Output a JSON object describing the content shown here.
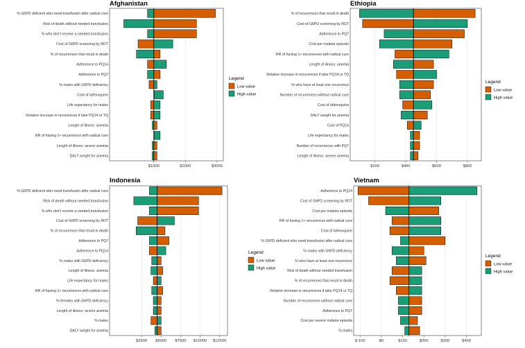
{
  "legend": {
    "title": "Legend",
    "low": "Low value",
    "high": "High value"
  },
  "colors": {
    "low": "#D55E00",
    "high": "#1B9E77"
  },
  "chart_data": [
    {
      "type": "bar",
      "title": "Afghanistan",
      "baseline": 1000,
      "xlim": [
        -400,
        3200
      ],
      "ticks": [
        1000,
        2000,
        3000
      ],
      "tick_labels": [
        "$1000",
        "$2000",
        "$3000"
      ],
      "categories": [
        "% G6PD deficient who need transfusion after radical cure",
        "Risk of death without needed transfusion",
        "% who don't receive a needed transfusion",
        "Cost of G6PD screening by RDT",
        "% of recurrences that result in death",
        "Adherence to PQ14",
        "Adherence to PQ7",
        "% males with G6PD deficiency",
        "Cost of tafenoquine",
        "Life expectancy for males",
        "Relative increase in recurrences if take PQ14 or TQ",
        "Length of illness: anemia",
        "RR of having 1+ recurrences with radical cure",
        "Length of illness: severe anemia",
        "DALY weight for anemia"
      ],
      "series": [
        {
          "name": "Low value",
          "values": [
            2950,
            2350,
            2350,
            500,
            1200,
            800,
            1200,
            850,
            1000,
            900,
            900,
            1100,
            1000,
            1100,
            1100
          ]
        },
        {
          "name": "High value",
          "values": [
            800,
            50,
            800,
            1600,
            450,
            1400,
            800,
            1100,
            1300,
            1200,
            1200,
            950,
            1200,
            950,
            950
          ]
        }
      ]
    },
    {
      "type": "bar",
      "title": "Ethiopia",
      "baseline": 450,
      "xlim": [
        40,
        890
      ],
      "ticks": [
        200,
        400,
        600,
        800
      ],
      "tick_labels": [
        "$200",
        "$400",
        "$600",
        "$800"
      ],
      "categories": [
        "% of recurrences that result in death",
        "Cost of G6PD screening by RDT",
        "Adherence to PQ7",
        "Cost per malaria episode",
        "RR of having 1+ recurrences with radical cure",
        "Length of illness: anemia",
        "Relative increase in recurrences if take PQ14 or TQ",
        "% who have at least one recurrence",
        "Number of recurrences without radical cure",
        "Cost of tafenoquine",
        "DALY weight for anemia",
        "Cost of PQ14",
        "Life expectancy for males",
        "Number of recurrences with PQ7",
        "Length of illness: severe anemia"
      ],
      "series": [
        {
          "name": "Low value",
          "values": [
            850,
            120,
            780,
            700,
            330,
            580,
            340,
            580,
            560,
            380,
            540,
            410,
            490,
            490,
            480
          ]
        },
        {
          "name": "High value",
          "values": [
            100,
            800,
            260,
            230,
            680,
            320,
            600,
            360,
            360,
            570,
            370,
            500,
            430,
            430,
            430
          ]
        }
      ]
    },
    {
      "type": "bar",
      "title": "Indonesia",
      "baseline": 4500,
      "xlim": [
        -1600,
        13500
      ],
      "ticks": [
        2500,
        5000,
        7500,
        10000,
        12500
      ],
      "tick_labels": [
        "$2500",
        "$5000",
        "$7500",
        "$10000",
        "$12500"
      ],
      "categories": [
        "% G6PD deficient who need transfusion after radical cure",
        "Risk of death without needed transfusion",
        "% who don't receive a needed transfusion",
        "Cost of G6PD screening by RDT",
        "% of recurrences that result in death",
        "Adherence to PQ7",
        "Adherence to PQ14",
        "% males with G6PD deficiency",
        "Length of illness: anemia",
        "Life expectancy for males",
        "RR of having 1+ recurrences with radical cure",
        "% females with G6PD deficiency",
        "Length of illness: severe anemia",
        "% males",
        "DALY weight for anemia"
      ],
      "series": [
        {
          "name": "Low value",
          "values": [
            12800,
            9800,
            9800,
            2000,
            5500,
            6000,
            3500,
            5000,
            5200,
            4000,
            5200,
            5000,
            5000,
            3700,
            5000
          ]
        },
        {
          "name": "High value",
          "values": [
            3500,
            1500,
            3500,
            6700,
            1800,
            3500,
            5600,
            3800,
            3700,
            5000,
            3800,
            4000,
            4000,
            5000,
            4200
          ]
        }
      ]
    },
    {
      "type": "bar",
      "title": "Vietnam",
      "baseline": 130,
      "xlim": [
        -130,
        470
      ],
      "ticks": [
        -100,
        0,
        100,
        200,
        300,
        400
      ],
      "tick_labels": [
        "$-100",
        "$0",
        "$100",
        "$200",
        "$300",
        "$400"
      ],
      "categories": [
        "Adherence to PQ14",
        "Cost of G6PD screening by RDT",
        "Cost per malaria episode",
        "RR of having 1+ recurrences with radical cure",
        "Cost of tafenoquine",
        "% G6PD deficient who need transfusion after radical cure",
        "% males with G6PD deficiency",
        "% who have at least one recurrence",
        "Risk of death without needed transfusion",
        "% of recurrences that result in death",
        "Relative increase in recurrences if take PQ14 or TQ",
        "Number of recurrences without radical cure",
        "Adherence to PQ7",
        "Cost per severe malaria episode",
        "% males"
      ],
      "series": [
        {
          "name": "Low value",
          "values": [
            -110,
            -60,
            270,
            50,
            40,
            300,
            200,
            210,
            50,
            40,
            70,
            190,
            190,
            170,
            180
          ]
        },
        {
          "name": "High value",
          "values": [
            450,
            280,
            20,
            280,
            280,
            90,
            50,
            70,
            190,
            190,
            190,
            80,
            80,
            90,
            110
          ]
        }
      ]
    }
  ]
}
